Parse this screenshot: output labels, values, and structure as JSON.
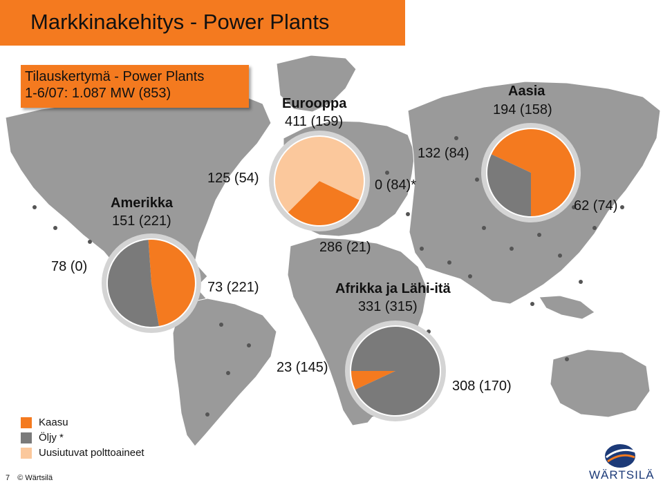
{
  "title": "Markkinakehitys - Power Plants",
  "subtitle": {
    "line1": "Tilauskertymä - Power Plants",
    "line2": "1-6/07: 1.087 MW (853)"
  },
  "colors": {
    "kaasu": "#f47a1f",
    "oljy": "#7a7a7a",
    "uusiutuvat": "#fbc89c",
    "map_land": "#9a9a9a",
    "pie_ring": "#d4d4d4"
  },
  "legend": [
    {
      "label": "Kaasu",
      "color": "#f47a1f"
    },
    {
      "label": "Öljy *",
      "color": "#7a7a7a"
    },
    {
      "label": "Uusiutuvat polttoaineet",
      "color": "#fbc89c"
    }
  ],
  "chart_data": {
    "type": "pie",
    "unit": "MW",
    "regions": [
      {
        "name": "Amerikka",
        "total": "151 (221)",
        "slices": [
          {
            "category": "Kaasu",
            "label": "73 (221)",
            "value": 73
          },
          {
            "category": "Öljy *",
            "label": "78 (0)",
            "value": 78
          }
        ]
      },
      {
        "name": "Eurooppa",
        "total": "411 (159)",
        "slices": [
          {
            "category": "Kaasu",
            "label": "125 (54)",
            "value": 125
          },
          {
            "category": "Öljy *",
            "label": "0 (84)*",
            "value": 0
          },
          {
            "category": "Uusiutuvat polttoaineet",
            "label": "286 (21)",
            "value": 286
          }
        ]
      },
      {
        "name": "Aasia",
        "total": "194 (158)",
        "slices": [
          {
            "category": "Kaasu",
            "label": "132 (84)",
            "value": 132
          },
          {
            "category": "Öljy *",
            "label": "62 (74)",
            "value": 62
          }
        ]
      },
      {
        "name": "Afrikka ja Lähi-itä",
        "total": "331 (315)",
        "slices": [
          {
            "category": "Kaasu",
            "label": "23 (145)",
            "value": 23
          },
          {
            "category": "Öljy *",
            "label": "308 (170)",
            "value": 308
          }
        ]
      }
    ]
  },
  "footer": {
    "page": "7",
    "copyright": "© Wärtsilä"
  },
  "logo": {
    "text": "WÄRTSILÄ"
  }
}
